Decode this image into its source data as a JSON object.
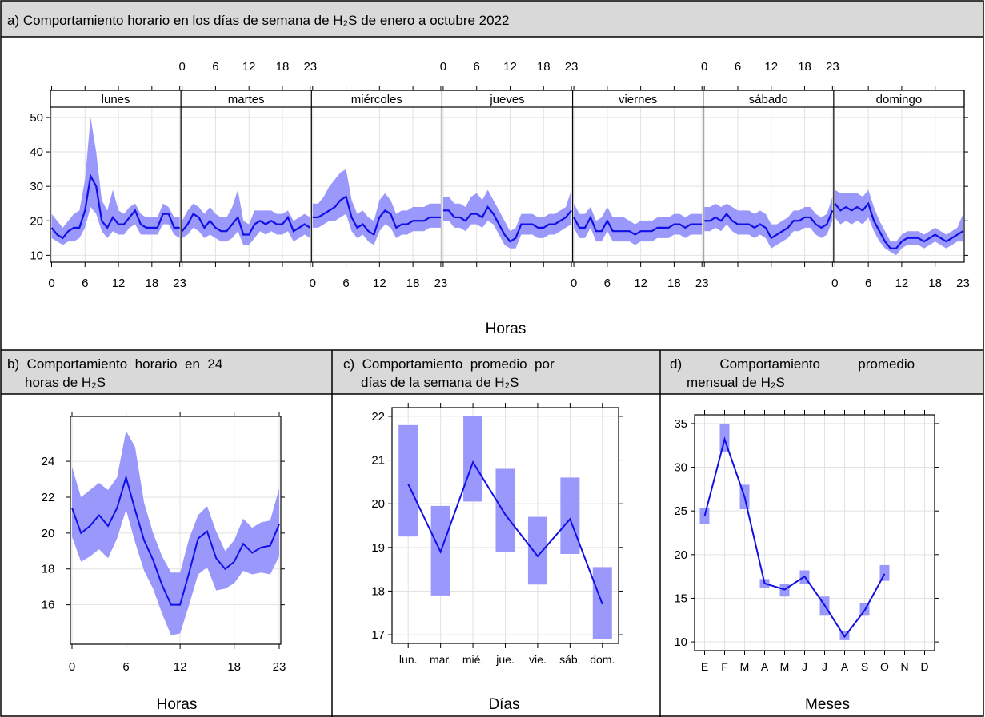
{
  "captions": {
    "a": "a) Comportamiento horario en los días de semana de H₂S de enero a octubre 2022",
    "b_line1": "b)  Comportamiento  horario  en  24",
    "b_line2": "horas de H₂S",
    "c_line1": "c)  Comportamiento  promedio  por",
    "c_line2": "días de la semana de H₂S",
    "d_line1": "d)          Comportamiento          promedio",
    "d_line2": "mensual de H₂S"
  },
  "colors": {
    "band": "#9a98fa",
    "line": "#1010e6",
    "grid": "#e2e2e2"
  },
  "chart_data": [
    {
      "id": "a",
      "type": "line",
      "xlabel": "Horas",
      "ylabel": "",
      "ylim": [
        8,
        53
      ],
      "yticks": [
        10,
        20,
        30,
        40,
        50
      ],
      "xticks": [
        0,
        6,
        12,
        18,
        23
      ],
      "panels": [
        "lunes",
        "martes",
        "miércoles",
        "jueves",
        "viernes",
        "sábado",
        "domingo"
      ],
      "series": [
        {
          "panel": "lunes",
          "mean": [
            18,
            16,
            15,
            17,
            18,
            18,
            23,
            33,
            30,
            20,
            18,
            21,
            19,
            19,
            21,
            23,
            19,
            18,
            18,
            18,
            22,
            22,
            18,
            18
          ],
          "lower": [
            15,
            14,
            13,
            14,
            14,
            15,
            18,
            24,
            22,
            17,
            15,
            17,
            16,
            16,
            18,
            19,
            16,
            16,
            16,
            16,
            19,
            19,
            16,
            15
          ],
          "upper": [
            22,
            20,
            18,
            20,
            22,
            23,
            32,
            50,
            40,
            26,
            23,
            29,
            23,
            22,
            24,
            25,
            22,
            21,
            21,
            21,
            25,
            24,
            21,
            21
          ]
        },
        {
          "panel": "martes",
          "mean": [
            17,
            19,
            22,
            21,
            18,
            20,
            18,
            17,
            17,
            19,
            21,
            16,
            16,
            19,
            20,
            19,
            20,
            19,
            19,
            21,
            17,
            18,
            19,
            18
          ],
          "lower": [
            15,
            16,
            18,
            17,
            15,
            16,
            15,
            14,
            14,
            15,
            17,
            13,
            13,
            15,
            17,
            16,
            17,
            16,
            16,
            17,
            14,
            15,
            16,
            15
          ],
          "upper": [
            20,
            23,
            25,
            24,
            22,
            24,
            22,
            21,
            21,
            24,
            29,
            20,
            19,
            23,
            23,
            23,
            23,
            22,
            22,
            23,
            20,
            21,
            22,
            21
          ]
        },
        {
          "panel": "miércoles",
          "mean": [
            21,
            21,
            22,
            23,
            24,
            26,
            27,
            21,
            18,
            19,
            17,
            16,
            21,
            23,
            22,
            18,
            19,
            19,
            20,
            20,
            20,
            21,
            21,
            21
          ],
          "lower": [
            18,
            18,
            19,
            20,
            20,
            21,
            22,
            17,
            15,
            16,
            14,
            13,
            17,
            19,
            18,
            15,
            16,
            16,
            17,
            17,
            17,
            18,
            18,
            18
          ],
          "upper": [
            25,
            25,
            27,
            30,
            32,
            34,
            35,
            26,
            22,
            23,
            21,
            20,
            26,
            28,
            26,
            22,
            23,
            23,
            24,
            24,
            24,
            25,
            25,
            25
          ]
        },
        {
          "panel": "jueves",
          "mean": [
            23,
            23,
            21,
            21,
            20,
            22,
            22,
            21,
            24,
            22,
            19,
            16,
            14,
            15,
            19,
            19,
            19,
            18,
            18,
            19,
            19,
            20,
            21,
            23
          ],
          "lower": [
            20,
            20,
            18,
            18,
            17,
            19,
            19,
            18,
            20,
            19,
            16,
            13,
            12,
            12,
            16,
            16,
            16,
            15,
            15,
            16,
            16,
            17,
            18,
            19
          ],
          "upper": [
            27,
            27,
            25,
            25,
            24,
            27,
            28,
            26,
            29,
            26,
            23,
            20,
            17,
            18,
            22,
            22,
            22,
            21,
            21,
            22,
            22,
            23,
            24,
            29
          ]
        },
        {
          "panel": "viernes",
          "mean": [
            21,
            18,
            18,
            21,
            17,
            17,
            20,
            17,
            17,
            17,
            17,
            16,
            17,
            17,
            17,
            18,
            18,
            18,
            19,
            19,
            18,
            19,
            19,
            19
          ],
          "lower": [
            18,
            15,
            15,
            18,
            14,
            14,
            17,
            14,
            14,
            14,
            14,
            13,
            14,
            14,
            14,
            15,
            15,
            15,
            16,
            16,
            15,
            16,
            16,
            16
          ],
          "upper": [
            25,
            22,
            22,
            24,
            20,
            21,
            24,
            21,
            21,
            21,
            20,
            19,
            20,
            20,
            20,
            21,
            21,
            21,
            22,
            22,
            21,
            22,
            22,
            22
          ]
        },
        {
          "panel": "sábado",
          "mean": [
            20,
            20,
            21,
            20,
            22,
            20,
            19,
            19,
            19,
            18,
            19,
            18,
            15,
            16,
            17,
            18,
            20,
            20,
            21,
            21,
            19,
            18,
            19,
            23
          ],
          "lower": [
            17,
            17,
            18,
            17,
            19,
            17,
            16,
            16,
            16,
            15,
            16,
            15,
            12,
            13,
            14,
            15,
            17,
            17,
            18,
            18,
            16,
            15,
            16,
            20
          ],
          "upper": [
            24,
            24,
            25,
            24,
            25,
            24,
            23,
            23,
            23,
            22,
            23,
            22,
            19,
            19,
            20,
            21,
            23,
            23,
            24,
            24,
            22,
            21,
            22,
            27
          ]
        },
        {
          "panel": "domingo",
          "mean": [
            25,
            23,
            24,
            23,
            24,
            23,
            25,
            20,
            17,
            14,
            12,
            12,
            14,
            15,
            15,
            15,
            14,
            15,
            16,
            15,
            14,
            15,
            16,
            17
          ],
          "lower": [
            21,
            19,
            20,
            19,
            20,
            19,
            21,
            17,
            14,
            12,
            11,
            10,
            12,
            13,
            13,
            13,
            12,
            13,
            14,
            13,
            12,
            13,
            14,
            14
          ],
          "upper": [
            29,
            28,
            28,
            28,
            28,
            27,
            29,
            24,
            20,
            17,
            14,
            14,
            16,
            17,
            17,
            17,
            16,
            17,
            18,
            17,
            16,
            17,
            18,
            22
          ]
        }
      ]
    },
    {
      "id": "b",
      "type": "line",
      "xlabel": "Horas",
      "ylabel": "",
      "ylim": [
        13.8,
        26.5
      ],
      "yticks": [
        16,
        18,
        20,
        22,
        24
      ],
      "xticks": [
        0,
        6,
        12,
        18,
        23
      ],
      "x": [
        0,
        1,
        2,
        3,
        4,
        5,
        6,
        7,
        8,
        9,
        10,
        11,
        12,
        13,
        14,
        15,
        16,
        17,
        18,
        19,
        20,
        21,
        22,
        23
      ],
      "mean": [
        21.4,
        20.0,
        20.4,
        21.0,
        20.4,
        21.4,
        23.1,
        21.3,
        19.6,
        18.5,
        17.1,
        16.0,
        16.0,
        17.8,
        19.7,
        20.1,
        18.6,
        18.0,
        18.4,
        19.4,
        18.9,
        19.2,
        19.3,
        20.5
      ],
      "lower": [
        19.8,
        18.4,
        18.7,
        19.1,
        18.6,
        19.7,
        21.3,
        19.5,
        17.9,
        16.9,
        15.5,
        14.3,
        14.4,
        16.0,
        17.7,
        18.1,
        16.8,
        16.9,
        17.2,
        17.9,
        17.7,
        17.8,
        17.7,
        18.7
      ],
      "upper": [
        23.7,
        22.0,
        22.4,
        22.8,
        22.4,
        23.1,
        25.7,
        24.8,
        21.7,
        20.0,
        18.7,
        17.8,
        17.8,
        19.7,
        21.0,
        21.5,
        20.1,
        19.0,
        19.6,
        20.8,
        20.3,
        20.6,
        20.7,
        22.5
      ]
    },
    {
      "id": "c",
      "type": "bar",
      "xlabel": "Días",
      "ylabel": "",
      "ylim": [
        16.8,
        22.2
      ],
      "yticks": [
        17,
        18,
        19,
        20,
        21,
        22
      ],
      "categories": [
        "lun.",
        "mar.",
        "mié.",
        "jue.",
        "vie.",
        "sáb.",
        "dom."
      ],
      "mean": [
        20.45,
        18.9,
        20.95,
        19.75,
        18.8,
        19.65,
        17.7
      ],
      "lower": [
        19.25,
        17.9,
        20.05,
        18.9,
        18.15,
        18.85,
        16.9
      ],
      "upper": [
        21.8,
        19.95,
        22.0,
        20.8,
        19.7,
        20.6,
        18.55
      ]
    },
    {
      "id": "d",
      "type": "bar",
      "xlabel": "Meses",
      "ylabel": "",
      "ylim": [
        9,
        36
      ],
      "yticks": [
        10,
        15,
        20,
        25,
        30,
        35
      ],
      "categories": [
        "E",
        "F",
        "M",
        "A",
        "M",
        "J",
        "J",
        "A",
        "S",
        "O",
        "N",
        "D"
      ],
      "mean": [
        24.4,
        33.2,
        26.6,
        16.7,
        16.0,
        17.5,
        14.2,
        10.6,
        13.6,
        17.8,
        null,
        null
      ],
      "lower": [
        23.5,
        31.8,
        25.2,
        16.2,
        15.2,
        16.6,
        13.0,
        10.2,
        13.0,
        17.0,
        null,
        null
      ],
      "upper": [
        25.3,
        35.0,
        28.0,
        17.2,
        16.6,
        18.2,
        15.2,
        11.2,
        14.4,
        18.8,
        null,
        null
      ]
    }
  ]
}
